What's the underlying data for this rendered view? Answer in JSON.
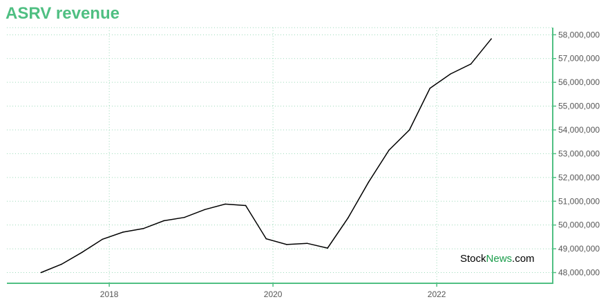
{
  "colors": {
    "accent": "#4fbf82",
    "line": "#000000",
    "watermark_green": "#1a9c4a"
  },
  "watermark": {
    "part_a": "Stock",
    "part_b": "News",
    "part_c": ".com"
  },
  "chart_data": {
    "type": "line",
    "title": "ASRV revenue",
    "xlabel": "",
    "ylabel": "",
    "x_ticks": [
      "2018",
      "2020",
      "2022"
    ],
    "y_ticks": [
      48000000,
      49000000,
      50000000,
      51000000,
      52000000,
      53000000,
      54000000,
      55000000,
      56000000,
      57000000,
      58000000
    ],
    "y_tick_labels": [
      "48,000,000",
      "49,000,000",
      "50,000,000",
      "51,000,000",
      "52,000,000",
      "53,000,000",
      "54,000,000",
      "55,000,000",
      "56,000,000",
      "57,000,000",
      "58,000,000"
    ],
    "ylim": [
      47550000,
      58300000
    ],
    "xlim": [
      "2016-10",
      "2023-06"
    ],
    "grid": true,
    "series": [
      {
        "x": [
          "2017-03",
          "2017-06",
          "2017-09",
          "2017-12",
          "2018-03",
          "2018-06",
          "2018-09",
          "2018-12",
          "2019-03",
          "2019-06",
          "2019-09",
          "2019-12",
          "2020-03",
          "2020-06",
          "2020-09",
          "2020-12",
          "2021-03",
          "2021-06",
          "2021-09",
          "2021-12",
          "2022-03",
          "2022-06",
          "2022-09"
        ],
        "values": [
          48000000,
          48350000,
          48850000,
          49400000,
          49700000,
          49850000,
          50180000,
          50320000,
          50650000,
          50880000,
          50820000,
          49420000,
          49180000,
          49230000,
          49030000,
          50300000,
          51800000,
          53150000,
          54000000,
          55750000,
          56350000,
          56770000,
          57830000
        ]
      }
    ]
  }
}
